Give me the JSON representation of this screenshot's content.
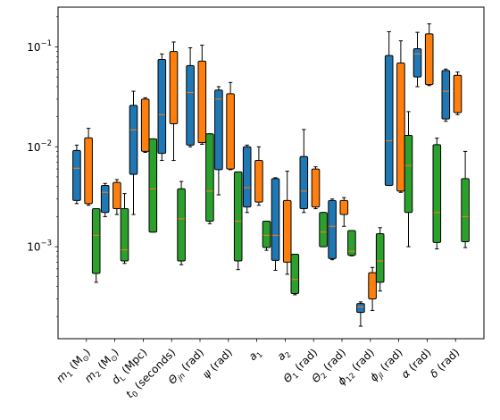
{
  "chart_data": {
    "type": "box",
    "yscale": "log",
    "ylim": [
      0.00012,
      0.25
    ],
    "yticks": [
      {
        "value": 0.001,
        "base": "10",
        "exp": "−3"
      },
      {
        "value": 0.01,
        "base": "10",
        "exp": "−2"
      },
      {
        "value": 0.1,
        "base": "10",
        "exp": "−1"
      }
    ],
    "categories": [
      {
        "sym": "m",
        "sub": "1",
        "unit": " (M",
        "unit_sub": "⊙",
        "tail": ")"
      },
      {
        "sym": "m",
        "sub": "2",
        "unit": " (M",
        "unit_sub": "⊙",
        "tail": ")"
      },
      {
        "sym": "d",
        "sub": "L",
        "unit": " (Mpc)",
        "unit_sub": "",
        "tail": ""
      },
      {
        "sym": "t",
        "sub": "0",
        "unit": " (seconds)",
        "unit_sub": "",
        "tail": ""
      },
      {
        "sym": "Θ",
        "sub": "jn",
        "unit": " (rad)",
        "unit_sub": "",
        "tail": ""
      },
      {
        "sym": "ψ",
        "sub": "",
        "unit": " (rad)",
        "unit_sub": "",
        "tail": ""
      },
      {
        "sym": "a",
        "sub": "1",
        "unit": "",
        "unit_sub": "",
        "tail": ""
      },
      {
        "sym": "a",
        "sub": "2",
        "unit": "",
        "unit_sub": "",
        "tail": ""
      },
      {
        "sym": "Θ",
        "sub": "1",
        "unit": " (rad)",
        "unit_sub": "",
        "tail": ""
      },
      {
        "sym": "Θ",
        "sub": "2",
        "unit": " (rad)",
        "unit_sub": "",
        "tail": ""
      },
      {
        "sym": "ϕ",
        "sub": "12",
        "unit": " (rad)",
        "unit_sub": "",
        "tail": ""
      },
      {
        "sym": "ϕ",
        "sub": "jl",
        "unit": " (rad)",
        "unit_sub": "",
        "tail": ""
      },
      {
        "sym": "α",
        "sub": "",
        "unit": " (rad)",
        "unit_sub": "",
        "tail": ""
      },
      {
        "sym": "δ",
        "sub": "",
        "unit": " (rad)",
        "unit_sub": "",
        "tail": ""
      }
    ],
    "series": [
      {
        "color": "#1f77b4",
        "boxes": [
          {
            "whislo": 0.0027,
            "q1": 0.0029,
            "med": 0.0061,
            "q3": 0.0092,
            "whishi": 0.0104
          },
          {
            "whislo": 0.002,
            "q1": 0.0022,
            "med": 0.0035,
            "q3": 0.0041,
            "whishi": 0.0043
          },
          {
            "whislo": 0.0021,
            "q1": 0.0053,
            "med": 0.0148,
            "q3": 0.026,
            "whishi": 0.036
          },
          {
            "whislo": 0.0073,
            "q1": 0.0086,
            "med": 0.021,
            "q3": 0.075,
            "whishi": 0.085
          },
          {
            "whislo": 0.01,
            "q1": 0.0104,
            "med": 0.035,
            "q3": 0.065,
            "whishi": 0.098
          },
          {
            "whislo": 0.0033,
            "q1": 0.0059,
            "med": 0.03,
            "q3": 0.037,
            "whishi": 0.04
          },
          {
            "whislo": 0.0022,
            "q1": 0.0025,
            "med": 0.0039,
            "q3": 0.01,
            "whishi": 0.0104
          },
          {
            "whislo": 0.00058,
            "q1": 0.00073,
            "med": 0.0013,
            "q3": 0.0048,
            "whishi": 0.0049
          },
          {
            "whislo": 0.0022,
            "q1": 0.0024,
            "med": 0.0036,
            "q3": 0.008,
            "whishi": 0.0149
          },
          {
            "whislo": 0.00074,
            "q1": 0.00076,
            "med": 0.0016,
            "q3": 0.0029,
            "whishi": 0.003
          },
          {
            "whislo": 0.00016,
            "q1": 0.00022,
            "med": 0.00025,
            "q3": 0.00027,
            "whishi": 0.00028
          },
          {
            "whislo": 0.0041,
            "q1": 0.0041,
            "med": 0.0115,
            "q3": 0.082,
            "whishi": 0.142
          },
          {
            "whislo": 0.04,
            "q1": 0.05,
            "med": 0.085,
            "q3": 0.096,
            "whishi": 0.14
          },
          {
            "whislo": 0.018,
            "q1": 0.019,
            "med": 0.036,
            "q3": 0.058,
            "whishi": 0.06
          }
        ]
      },
      {
        "color": "#ff7f0e",
        "boxes": [
          {
            "whislo": 0.0026,
            "q1": 0.0027,
            "med": 0.0075,
            "q3": 0.0123,
            "whishi": 0.0153
          },
          {
            "whislo": 0.0021,
            "q1": 0.0024,
            "med": 0.0038,
            "q3": 0.0044,
            "whishi": 0.0047
          },
          {
            "whislo": 0.0088,
            "q1": 0.009,
            "med": 0.016,
            "q3": 0.03,
            "whishi": 0.031
          },
          {
            "whislo": 0.0073,
            "q1": 0.017,
            "med": 0.035,
            "q3": 0.09,
            "whishi": 0.112
          },
          {
            "whislo": 0.0106,
            "q1": 0.011,
            "med": 0.036,
            "q3": 0.072,
            "whishi": 0.104
          },
          {
            "whislo": 0.0059,
            "q1": 0.006,
            "med": 0.018,
            "q3": 0.034,
            "whishi": 0.044
          },
          {
            "whislo": 0.0026,
            "q1": 0.0028,
            "med": 0.0045,
            "q3": 0.0073,
            "whishi": 0.01
          },
          {
            "whislo": 0.00053,
            "q1": 0.0007,
            "med": 0.00125,
            "q3": 0.0029,
            "whishi": 0.0057
          },
          {
            "whislo": 0.0024,
            "q1": 0.0025,
            "med": 0.0034,
            "q3": 0.006,
            "whishi": 0.0063
          },
          {
            "whislo": 0.0016,
            "q1": 0.0021,
            "med": 0.0024,
            "q3": 0.0029,
            "whishi": 0.0031
          },
          {
            "whislo": 0.00023,
            "q1": 0.0003,
            "med": 0.0004,
            "q3": 0.00055,
            "whishi": 0.00062
          },
          {
            "whislo": 0.0035,
            "q1": 0.0036,
            "med": 0.032,
            "q3": 0.069,
            "whishi": 0.115
          },
          {
            "whislo": 0.041,
            "q1": 0.042,
            "med": 0.085,
            "q3": 0.135,
            "whishi": 0.17
          },
          {
            "whislo": 0.021,
            "q1": 0.022,
            "med": 0.036,
            "q3": 0.052,
            "whishi": 0.056
          }
        ]
      },
      {
        "color": "#2ca02c",
        "boxes": [
          {
            "whislo": 0.00044,
            "q1": 0.00054,
            "med": 0.0013,
            "q3": 0.0024,
            "whishi": 0.0024
          },
          {
            "whislo": 0.00068,
            "q1": 0.00072,
            "med": 0.00093,
            "q3": 0.0024,
            "whishi": 0.0034
          },
          {
            "whislo": 0.0014,
            "q1": 0.0014,
            "med": 0.0038,
            "q3": 0.012,
            "whishi": 0.012
          },
          {
            "whislo": 0.00066,
            "q1": 0.00072,
            "med": 0.0019,
            "q3": 0.0038,
            "whishi": 0.0045
          },
          {
            "whislo": 0.0017,
            "q1": 0.0018,
            "med": 0.0036,
            "q3": 0.0135,
            "whishi": 0.0135
          },
          {
            "whislo": 0.00059,
            "q1": 0.00072,
            "med": 0.0018,
            "q3": 0.0056,
            "whishi": 0.0056
          },
          {
            "whislo": 0.00092,
            "q1": 0.00098,
            "med": 0.0013,
            "q3": 0.0018,
            "whishi": 0.0018
          },
          {
            "whislo": 0.00033,
            "q1": 0.00034,
            "med": 0.00047,
            "q3": 0.00084,
            "whishi": 0.00084
          },
          {
            "whislo": 0.001,
            "q1": 0.001,
            "med": 0.0014,
            "q3": 0.0022,
            "whishi": 0.0022
          },
          {
            "whislo": 0.00081,
            "q1": 0.00082,
            "med": 0.0009,
            "q3": 0.00145,
            "whishi": 0.00145
          },
          {
            "whislo": 0.00036,
            "q1": 0.00044,
            "med": 0.00072,
            "q3": 0.00135,
            "whishi": 0.00155
          },
          {
            "whislo": 0.001,
            "q1": 0.0022,
            "med": 0.0065,
            "q3": 0.013,
            "whishi": 0.0225
          },
          {
            "whislo": 0.00095,
            "q1": 0.0011,
            "med": 0.0022,
            "q3": 0.0105,
            "whishi": 0.0122
          },
          {
            "whislo": 0.00098,
            "q1": 0.00112,
            "med": 0.002,
            "q3": 0.0048,
            "whishi": 0.009
          }
        ]
      }
    ],
    "median_color": "#ff7f0e",
    "box_edge_color": "#000000",
    "grid": false,
    "legend": false
  }
}
